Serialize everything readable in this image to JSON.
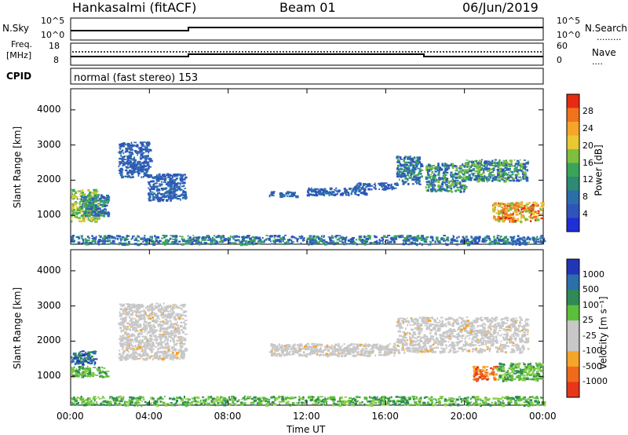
{
  "header": {
    "radar": "Hankasalmi (fitACF)",
    "beam": "Beam 01",
    "date": "06/Jun/2019"
  },
  "top_panels": {
    "nsky_label": "N.Sky",
    "nsky_ticks": [
      "10^5",
      "10^0"
    ],
    "nsearch_label": "N.Search",
    "nsearch_ticks": [
      "10^5",
      "10^0"
    ],
    "freq_label_1": "Freq.",
    "freq_label_2": "[MHz]",
    "freq_ticks": [
      "18",
      "8"
    ],
    "nave_label": "Nave",
    "nave_ticks": [
      "60",
      "0"
    ],
    "cpid_label": "CPID",
    "cpid_text": "normal (fast stereo) 153"
  },
  "axes": {
    "ylabel": "Slant Range [km]",
    "yticks": [
      {
        "value": 4000,
        "label": "4000"
      },
      {
        "value": 3000,
        "label": "3000"
      },
      {
        "value": 2000,
        "label": "2000"
      },
      {
        "value": 1000,
        "label": "1000"
      }
    ],
    "xticks": [
      "00:00",
      "04:00",
      "08:00",
      "12:00",
      "16:00",
      "20:00",
      "00:00"
    ],
    "xlabel": "Time UT"
  },
  "colorbars": {
    "power": {
      "label": "Power [dB]",
      "ticks": [
        "28",
        "24",
        "20",
        "16",
        "12",
        "8",
        "4"
      ],
      "colors": [
        "#e82a12",
        "#f0731c",
        "#f4a52a",
        "#e8c833",
        "#7fbf3f",
        "#3aa55a",
        "#2e8a72",
        "#2c6eaa",
        "#2f55bb",
        "#1f2ed6"
      ]
    },
    "velocity": {
      "label": "Velocity [m s⁻¹]",
      "ticks": [
        "1000",
        "500",
        "100",
        "25",
        "-25",
        "-100",
        "-500",
        "-1000"
      ],
      "colors": [
        "#2235b8",
        "#2c6faa",
        "#2f8a58",
        "#5cbf3a",
        "#c8c8c8",
        "#c8c8c8",
        "#f4a52a",
        "#f06a1c",
        "#e8361a"
      ]
    }
  },
  "chart_data": {
    "type": "heatmap",
    "time_range_hours": [
      0,
      24
    ],
    "range_km": [
      180,
      4600
    ],
    "panels": [
      {
        "name": "Power",
        "regions": [
          {
            "t": [
              0.0,
              1.4
            ],
            "r": [
              850,
              1750
            ],
            "value": "10-20 dB"
          },
          {
            "t": [
              0.5,
              1.9
            ],
            "r": [
              1000,
              1600
            ],
            "value": "4-12 dB"
          },
          {
            "t": [
              2.4,
              4.0
            ],
            "r": [
              2100,
              3100
            ],
            "value": "4-8 dB"
          },
          {
            "t": [
              3.9,
              5.8
            ],
            "r": [
              1450,
              2200
            ],
            "value": "4-8 dB"
          },
          {
            "t": [
              10.0,
              11.5
            ],
            "r": [
              1550,
              1700
            ],
            "value": "4-8 dB"
          },
          {
            "t": [
              11.9,
              15.0
            ],
            "r": [
              1600,
              1800
            ],
            "value": "4-8 dB"
          },
          {
            "t": [
              14.3,
              16.5
            ],
            "r": [
              1750,
              1950
            ],
            "value": "4-8 dB"
          },
          {
            "t": [
              16.5,
              17.8
            ],
            "r": [
              1900,
              2700
            ],
            "value": "4-12 dB"
          },
          {
            "t": [
              18.0,
              20.0
            ],
            "r": [
              1700,
              2500
            ],
            "value": "8-16 dB"
          },
          {
            "t": [
              20.0,
              23.2
            ],
            "r": [
              2000,
              2600
            ],
            "value": "8-16 dB"
          },
          {
            "t": [
              21.4,
              23.9
            ],
            "r": [
              850,
              1400
            ],
            "value": "16-30 dB"
          },
          {
            "t": [
              0.0,
              24.0
            ],
            "r": [
              200,
              450
            ],
            "value": "4-12 dB"
          }
        ]
      },
      {
        "name": "Velocity",
        "regions": [
          {
            "t": [
              0.0,
              1.2
            ],
            "r": [
              1350,
              1750
            ],
            "value": "100-1000 m/s"
          },
          {
            "t": [
              0.0,
              1.8
            ],
            "r": [
              1000,
              1300
            ],
            "value": "25-100 m/s"
          },
          {
            "t": [
              2.4,
              5.8
            ],
            "r": [
              1500,
              3100
            ],
            "value": "-25 to 25 m/s"
          },
          {
            "t": [
              10.0,
              16.5
            ],
            "r": [
              1600,
              1950
            ],
            "value": "-25 to 25 m/s"
          },
          {
            "t": [
              16.5,
              23.2
            ],
            "r": [
              1700,
              2700
            ],
            "value": "-25 to 25 m/s"
          },
          {
            "t": [
              20.4,
              21.6
            ],
            "r": [
              900,
              1300
            ],
            "value": "-100 to -500 m/s"
          },
          {
            "t": [
              21.6,
              23.9
            ],
            "r": [
              900,
              1400
            ],
            "value": "25-100 m/s"
          },
          {
            "t": [
              0.0,
              24.0
            ],
            "r": [
              200,
              450
            ],
            "value": "25-100 m/s"
          }
        ]
      }
    ]
  }
}
